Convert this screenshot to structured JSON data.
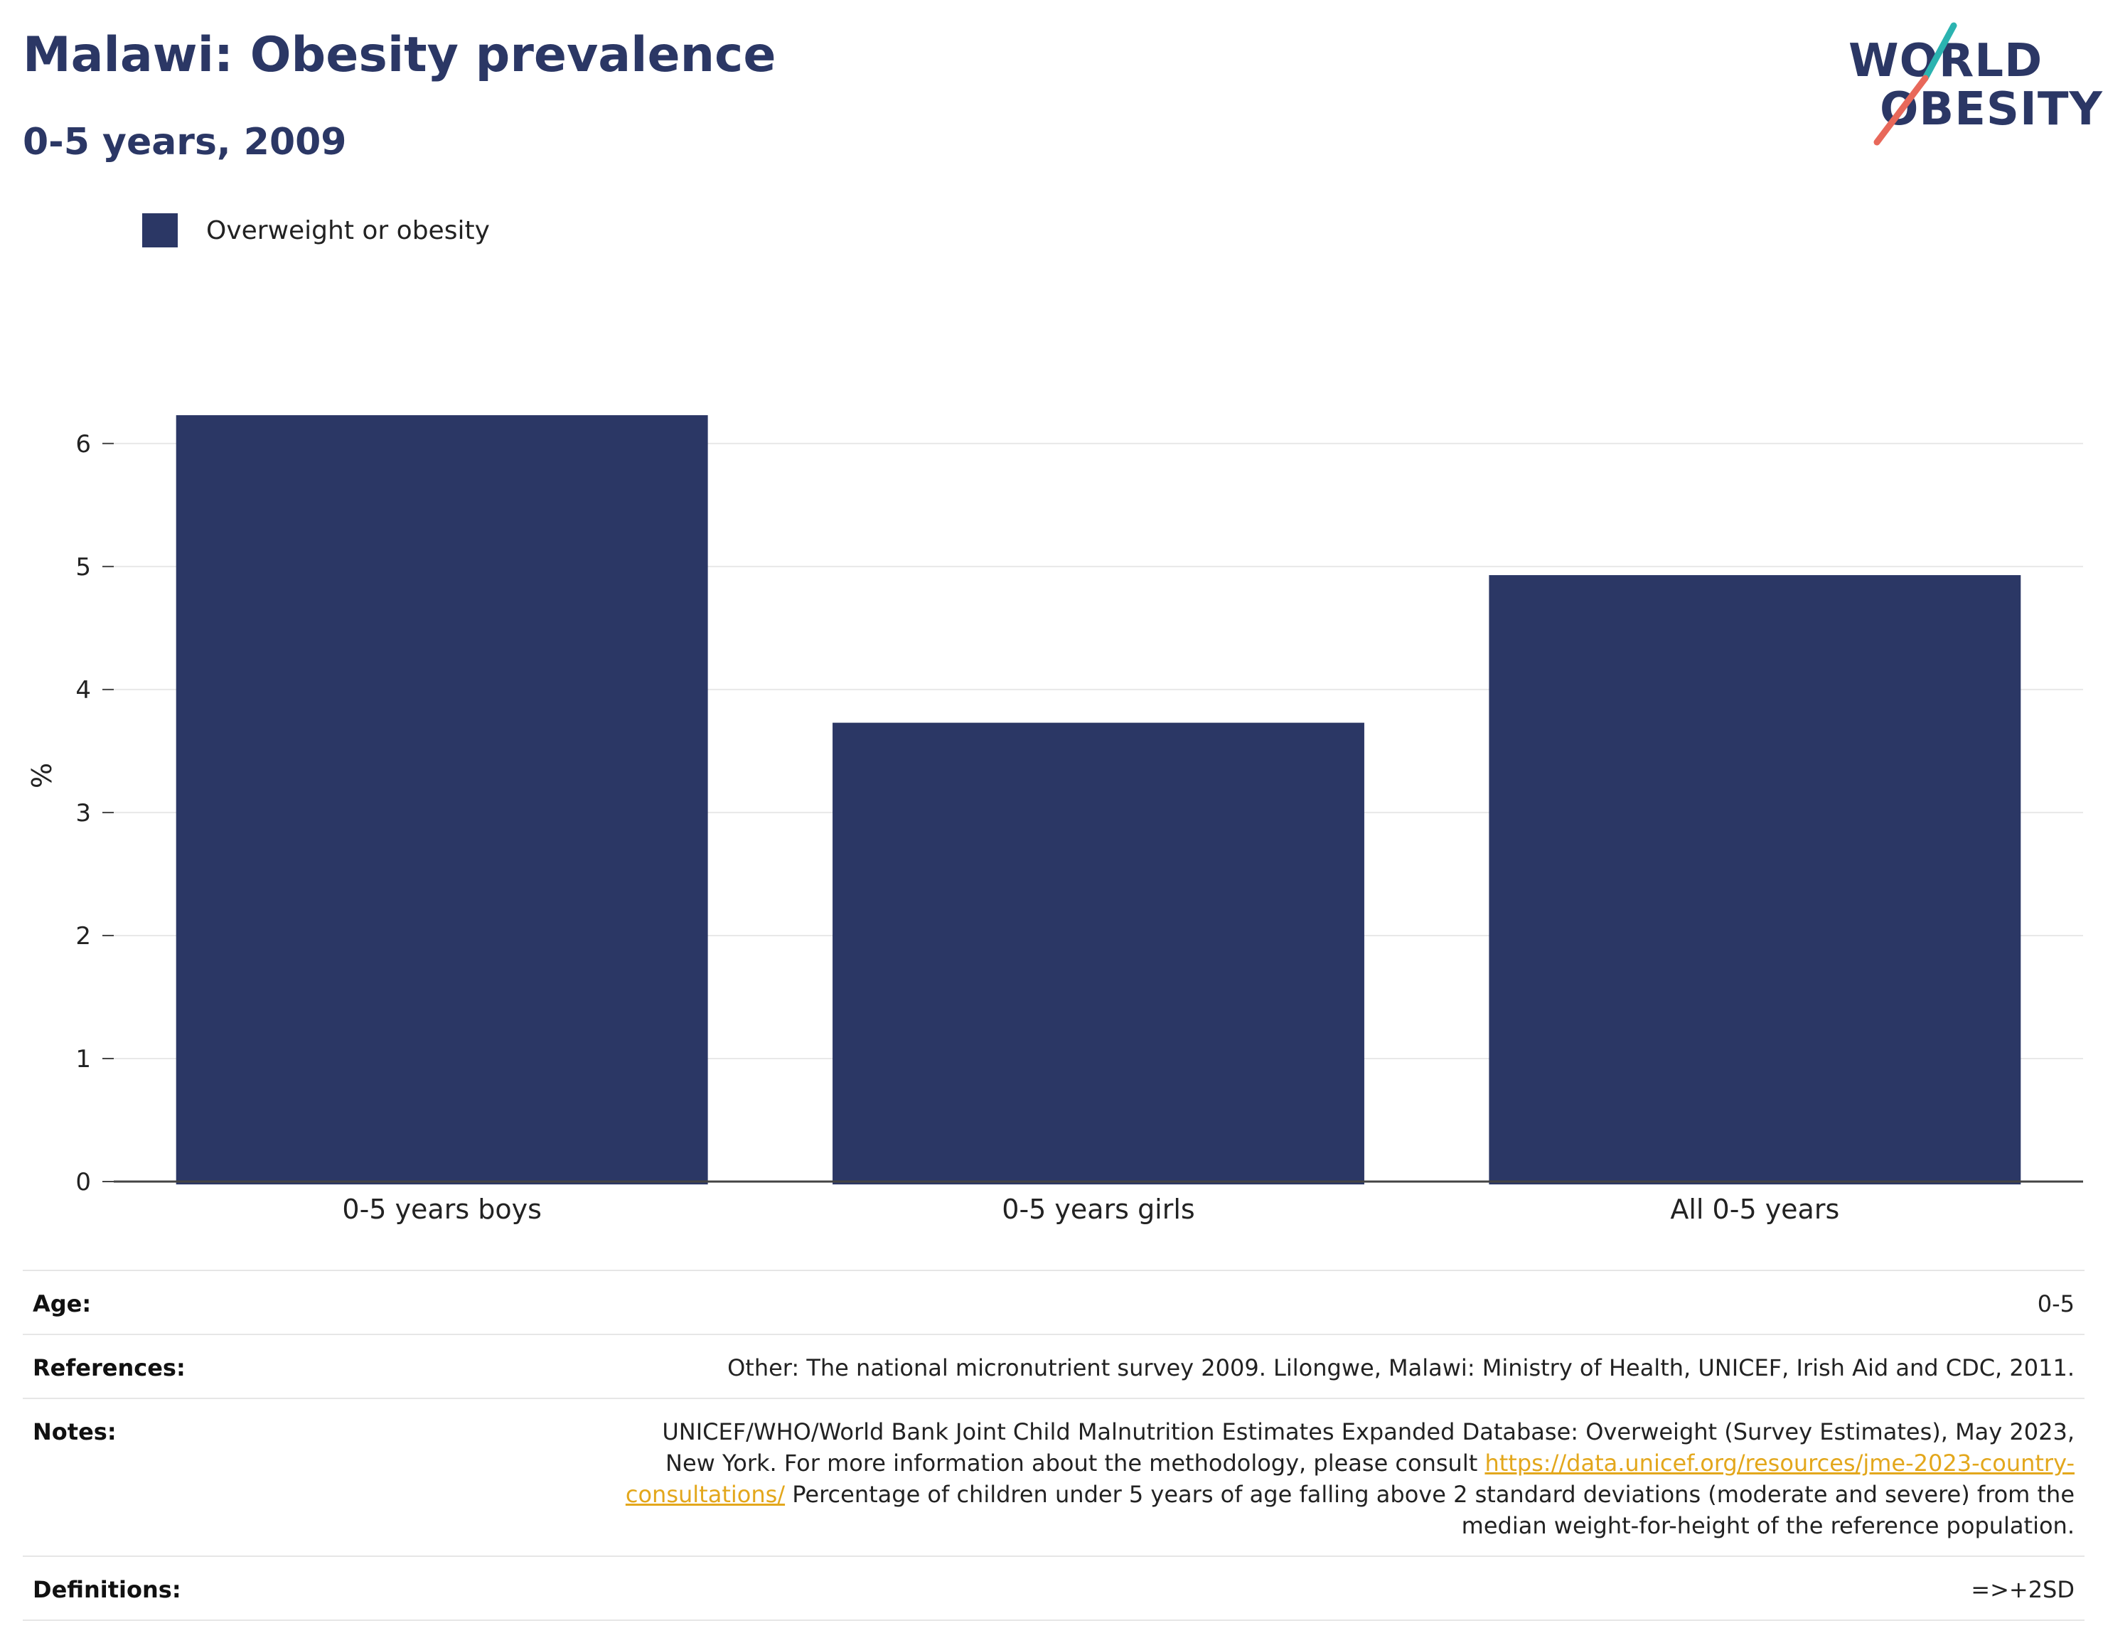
{
  "header": {
    "title": "Malawi: Obesity prevalence",
    "subtitle": "0-5 years, 2009"
  },
  "logo": {
    "line1": "WORLD",
    "line2": "OBESITY",
    "colors": {
      "text": "#2b3765",
      "accent_teal": "#2bb3b0",
      "accent_red": "#e8685a"
    }
  },
  "legend": {
    "items": [
      {
        "label": "Overweight or obesity",
        "color": "#2b3765"
      }
    ]
  },
  "chart_data": {
    "type": "bar",
    "categories": [
      "0-5 years boys",
      "0-5 years girls",
      "All 0-5 years"
    ],
    "series": [
      {
        "name": "Overweight or obesity",
        "values": [
          6.23,
          3.73,
          4.93
        ],
        "color": "#2b3765"
      }
    ],
    "title": "",
    "xlabel": "",
    "ylabel": "%",
    "ylim": [
      0,
      6.6
    ],
    "yticks": [
      0,
      1,
      2,
      3,
      4,
      5,
      6
    ],
    "grid": true,
    "legend_position": "top-left"
  },
  "meta": {
    "age": {
      "label": "Age:",
      "value": "0-5"
    },
    "references": {
      "label": "References:",
      "value": "Other: The national micronutrient survey 2009. Lilongwe, Malawi: Ministry of Health, UNICEF, Irish Aid and CDC, 2011."
    },
    "notes": {
      "label": "Notes:",
      "text_before": "UNICEF/WHO/World Bank Joint Child Malnutrition Estimates Expanded Database: Overweight (Survey Estimates), May 2023, New York. For more information about the methodology, please consult",
      "link": "https://data.unicef.org/resources/jme-2023-country-consultations/",
      "text_after": "Percentage of children under 5 years of age falling above 2 standard deviations (moderate and severe) from the median weight-for-height of the reference population."
    },
    "definitions": {
      "label": "Definitions:",
      "value": "=>+2SD"
    }
  }
}
